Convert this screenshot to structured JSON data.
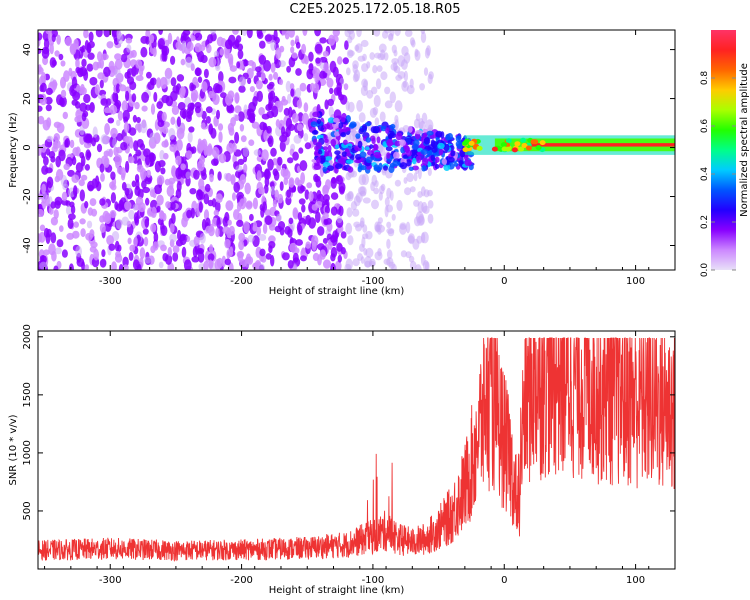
{
  "title": "C2E5.2025.172.05.18.R05",
  "colors": {
    "purple": "#6600dd",
    "light_purple": "#c8a8f8",
    "line": "#ee3333",
    "axis": "#000000"
  },
  "chart_data": [
    {
      "type": "heatmap",
      "name": "spectrogram",
      "xlabel": "Height of straight line (km)",
      "ylabel": "Frequency (Hz)",
      "xlim": [
        -355,
        130
      ],
      "ylim": [
        -50,
        48
      ],
      "xticks": [
        -300,
        -200,
        -100,
        0,
        100
      ],
      "yticks": [
        -40,
        -20,
        0,
        20,
        40
      ],
      "colorbar": {
        "label": "Normalized spectral amplitude",
        "range": [
          0.0,
          1.0
        ],
        "ticks": [
          0.0,
          0.2,
          0.4,
          0.6,
          0.8
        ],
        "tick_labels": [
          "0.0",
          "0.2",
          "0.4",
          "0.6",
          "0.8"
        ],
        "colormap": [
          "#e8e0f8",
          "#cc88ff",
          "#8800ff",
          "#2200ff",
          "#0055ff",
          "#00ccff",
          "#00ff88",
          "#22ff00",
          "#aaff00",
          "#ffcc00",
          "#ff6600",
          "#ff2222",
          "#ff3366"
        ]
      },
      "regions": [
        {
          "x": [
            -355,
            -120
          ],
          "y": [
            -50,
            48
          ],
          "density": "high",
          "amplitude": [
            0.05,
            0.2
          ]
        },
        {
          "x": [
            -120,
            -55
          ],
          "y": [
            -50,
            48
          ],
          "density": "low",
          "amplitude": [
            0.0,
            0.08
          ]
        },
        {
          "x": [
            -145,
            -25
          ],
          "y": [
            -12,
            12
          ],
          "density": "cluster",
          "amplitude": [
            0.1,
            0.35
          ]
        },
        {
          "x": [
            -30,
            130
          ],
          "y": [
            -1,
            3
          ],
          "density": "band",
          "amplitude": [
            0.4,
            0.95
          ]
        }
      ]
    },
    {
      "type": "line",
      "name": "snr",
      "xlabel": "Height of straight line (km)",
      "ylabel": "SNR (10 * v/v)",
      "xlim": [
        -355,
        130
      ],
      "ylim": [
        0,
        2050
      ],
      "xticks": [
        -300,
        -200,
        -100,
        0,
        100
      ],
      "yticks": [
        500,
        1000,
        1500,
        2000
      ],
      "series": [
        {
          "color": "#ee3333",
          "x": [
            -355,
            -300,
            -250,
            -200,
            -150,
            -120,
            -100,
            -90,
            -80,
            -70,
            -60,
            -50,
            -40,
            -30,
            -25,
            -20,
            -15,
            -10,
            -5,
            0,
            5,
            10,
            15,
            20,
            30,
            40,
            50,
            60,
            80,
            100,
            120,
            130
          ],
          "y": [
            160,
            175,
            160,
            165,
            180,
            210,
            280,
            330,
            260,
            230,
            260,
            350,
            470,
            700,
            900,
            1150,
            1400,
            1520,
            1300,
            1100,
            900,
            600,
            1350,
            1600,
            1700,
            1720,
            1680,
            1650,
            1560,
            1480,
            1420,
            1380
          ]
        }
      ]
    }
  ]
}
